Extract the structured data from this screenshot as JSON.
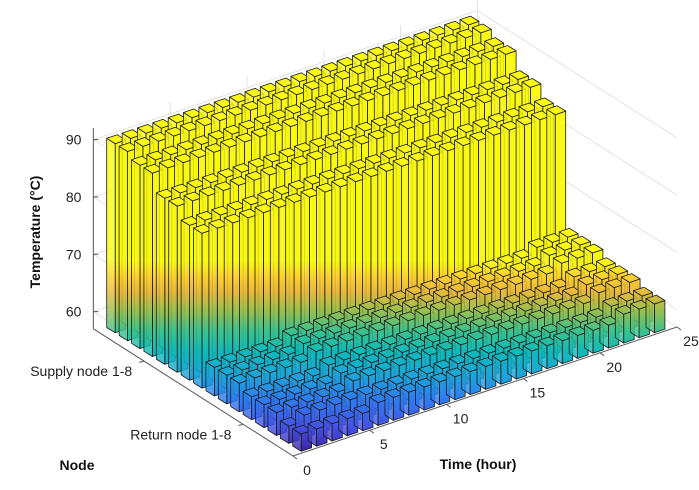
{
  "chart_data": {
    "type": "bar3d",
    "title": "",
    "xlabel": "Time (hour)",
    "ylabel": "Node",
    "zlabel": "Temperature (°C)",
    "x_ticks": [
      "0",
      "5",
      "10",
      "15",
      "20",
      "25"
    ],
    "y_ticks": [
      "Supply node 1-8",
      "Return node 1-8"
    ],
    "z_ticks": [
      "60",
      "70",
      "80",
      "90"
    ],
    "xlim": [
      0,
      25
    ],
    "zlim": [
      57,
      92
    ],
    "colormap": "parula",
    "grid": true,
    "hours": [
      1,
      2,
      3,
      4,
      5,
      6,
      7,
      8,
      9,
      10,
      11,
      12,
      13,
      14,
      15,
      16,
      17,
      18,
      19,
      20,
      21,
      22,
      23,
      24
    ],
    "series": [
      {
        "name": "Supply node 1",
        "values": [
          90,
          90,
          90,
          90,
          90,
          90,
          90,
          90,
          90,
          90,
          90,
          90,
          90,
          90,
          90,
          90,
          90,
          90,
          90,
          90,
          90,
          90,
          90,
          90
        ]
      },
      {
        "name": "Supply node 2",
        "values": [
          90,
          90,
          90,
          90,
          90,
          90,
          90,
          90,
          90,
          90,
          90,
          90,
          90,
          90,
          90,
          90,
          90,
          90,
          90,
          90,
          90,
          90,
          90,
          90
        ]
      },
      {
        "name": "Supply node 3",
        "values": [
          89,
          89,
          89,
          89,
          89,
          89,
          89,
          89,
          89,
          89,
          89,
          89,
          89,
          89,
          89,
          89,
          89,
          89,
          89,
          89,
          89,
          89,
          89,
          89
        ]
      },
      {
        "name": "Supply node 4",
        "values": [
          89,
          89,
          89,
          89,
          89,
          89,
          89,
          89,
          89,
          89,
          89,
          89,
          89,
          89,
          89,
          89,
          89,
          89,
          89,
          89,
          89,
          89,
          89,
          89
        ]
      },
      {
        "name": "Supply node 5",
        "values": [
          86,
          86,
          86,
          86,
          86,
          86,
          86,
          86,
          86,
          86,
          86,
          86,
          86,
          86,
          86,
          86,
          86,
          86,
          86,
          86,
          86,
          86,
          86,
          86
        ]
      },
      {
        "name": "Supply node 6",
        "values": [
          86,
          86,
          86,
          86,
          86,
          86,
          86,
          86,
          86,
          86,
          86,
          86,
          86,
          86,
          86,
          86,
          86,
          86,
          86,
          86,
          86,
          86,
          86,
          86
        ]
      },
      {
        "name": "Supply node 7",
        "values": [
          84,
          84,
          84,
          84,
          84,
          84,
          84,
          84,
          84,
          84,
          84,
          84,
          84,
          84,
          84,
          84,
          84,
          84,
          84,
          84,
          84,
          84,
          84,
          84
        ]
      },
      {
        "name": "Supply node 8",
        "values": [
          84,
          84,
          84,
          84,
          84,
          84,
          84,
          84,
          84,
          84,
          84,
          84,
          84,
          84,
          84,
          84,
          84,
          84,
          84,
          84,
          84,
          84,
          84,
          84
        ]
      },
      {
        "name": "Return node 1",
        "values": [
          62,
          62,
          62,
          62,
          62,
          63,
          63,
          63,
          63,
          63,
          63,
          63,
          63,
          63,
          63,
          63,
          63,
          63,
          63,
          63,
          63,
          64,
          64,
          64
        ]
      },
      {
        "name": "Return node 2",
        "values": [
          62,
          62,
          62,
          62,
          62,
          63,
          63,
          63,
          63,
          63,
          63,
          63,
          63,
          63,
          63,
          63,
          63,
          63,
          63,
          63,
          63,
          64,
          64,
          64
        ]
      },
      {
        "name": "Return node 3",
        "values": [
          62,
          62,
          62,
          62,
          62,
          63,
          63,
          63,
          63,
          63,
          63,
          63,
          63,
          63,
          63,
          63,
          63,
          63,
          63,
          63,
          63,
          64,
          64,
          64
        ]
      },
      {
        "name": "Return node 4",
        "values": [
          61,
          61,
          61,
          61,
          61,
          62,
          62,
          62,
          62,
          62,
          62,
          62,
          62,
          62,
          62,
          62,
          62,
          62,
          62,
          62,
          62,
          63,
          63,
          63
        ]
      },
      {
        "name": "Return node 5",
        "values": [
          61,
          61,
          61,
          61,
          61,
          62,
          62,
          62,
          62,
          62,
          62,
          62,
          62,
          62,
          62,
          62,
          62,
          62,
          62,
          62,
          62,
          63,
          63,
          63
        ]
      },
      {
        "name": "Return node 6",
        "values": [
          61,
          61,
          61,
          61,
          61,
          62,
          62,
          62,
          62,
          62,
          62,
          62,
          62,
          62,
          62,
          62,
          62,
          62,
          62,
          62,
          62,
          63,
          63,
          63
        ]
      },
      {
        "name": "Return node 7",
        "values": [
          60,
          61,
          61,
          61,
          61,
          61,
          61,
          61,
          61,
          61,
          61,
          61,
          61,
          61,
          61,
          61,
          61,
          61,
          61,
          61,
          61,
          62,
          62,
          62
        ]
      },
      {
        "name": "Return node 8",
        "values": [
          60,
          60,
          60,
          60,
          60,
          61,
          61,
          61,
          61,
          61,
          61,
          61,
          61,
          61,
          61,
          61,
          61,
          61,
          61,
          61,
          61,
          62,
          62,
          62
        ]
      }
    ]
  }
}
